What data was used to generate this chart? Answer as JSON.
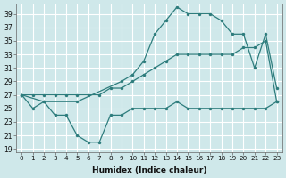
{
  "xlabel": "Humidex (Indice chaleur)",
  "bg_color": "#cfe8ea",
  "grid_color": "#ffffff",
  "line_color": "#2e7d7d",
  "xlim": [
    -0.5,
    23.5
  ],
  "ylim": [
    18.5,
    40.5
  ],
  "yticks": [
    19,
    21,
    23,
    25,
    27,
    29,
    31,
    33,
    35,
    37,
    39
  ],
  "xticks": [
    0,
    1,
    2,
    3,
    4,
    5,
    6,
    7,
    8,
    9,
    10,
    11,
    12,
    13,
    14,
    15,
    16,
    17,
    18,
    19,
    20,
    21,
    22,
    23
  ],
  "series_min_x": [
    0,
    1,
    2,
    3,
    4,
    5,
    6,
    7,
    8,
    9,
    10,
    11,
    12,
    13,
    14,
    15,
    16,
    17,
    18,
    19,
    20,
    21,
    22,
    23
  ],
  "series_min_y": [
    27,
    25,
    26,
    24,
    24,
    21,
    20,
    20,
    24,
    24,
    25,
    25,
    25,
    25,
    26,
    25,
    25,
    25,
    25,
    25,
    25,
    25,
    25,
    26
  ],
  "series_mid_x": [
    0,
    1,
    2,
    3,
    4,
    5,
    6,
    7,
    8,
    9,
    10,
    11,
    12,
    13,
    14,
    15,
    16,
    17,
    18,
    19,
    20,
    21,
    22,
    23
  ],
  "series_mid_y": [
    27,
    27,
    27,
    27,
    27,
    27,
    27,
    27,
    28,
    28,
    29,
    30,
    31,
    32,
    33,
    33,
    33,
    33,
    33,
    33,
    34,
    34,
    35,
    26
  ],
  "series_max_x": [
    0,
    2,
    5,
    9,
    10,
    11,
    12,
    13,
    14,
    15,
    16,
    17,
    18,
    19,
    20,
    21,
    22,
    23
  ],
  "series_max_y": [
    27,
    26,
    26,
    29,
    30,
    32,
    36,
    38,
    40,
    39,
    39,
    39,
    38,
    36,
    36,
    31,
    36,
    28
  ]
}
